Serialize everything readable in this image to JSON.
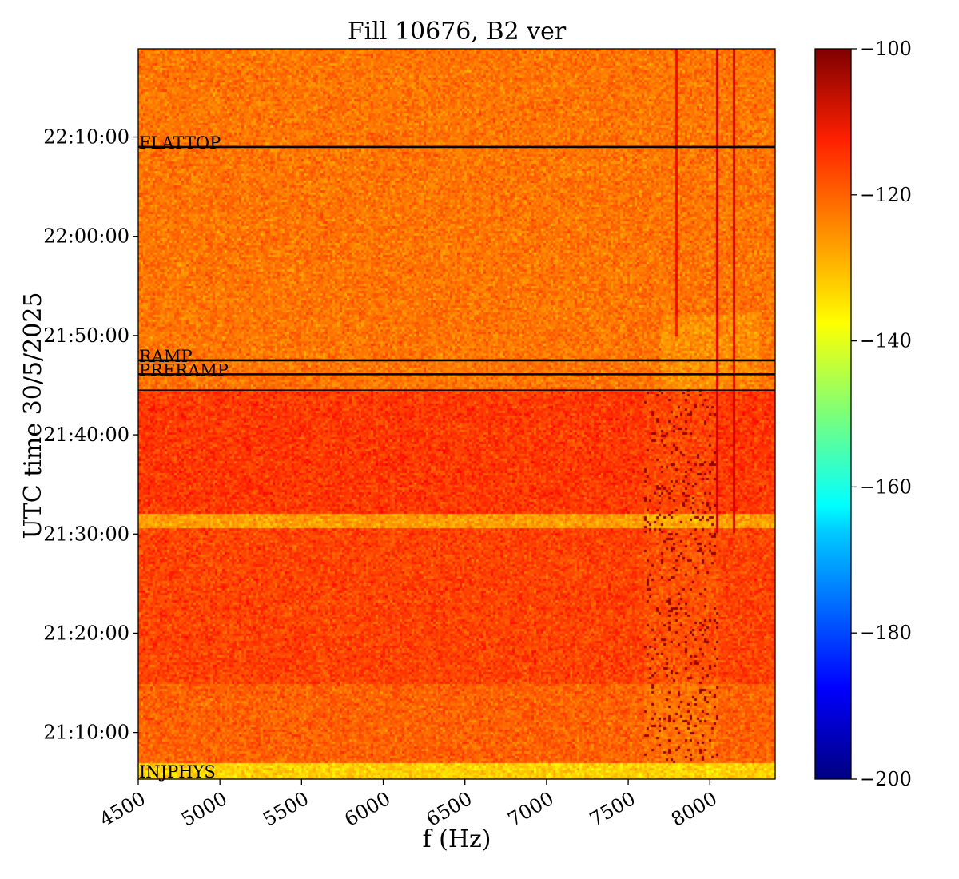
{
  "chart_data": {
    "type": "heatmap",
    "title": "Fill 10676, B2 ver",
    "xlabel": "f (Hz)",
    "ylabel": "UTC time 30/5/2025",
    "xlim": [
      4500,
      8400
    ],
    "xticks": [
      {
        "value": 4500,
        "label": "4500"
      },
      {
        "value": 5000,
        "label": "5000"
      },
      {
        "value": 5500,
        "label": "5500"
      },
      {
        "value": 6000,
        "label": "6000"
      },
      {
        "value": 6500,
        "label": "6500"
      },
      {
        "value": 7000,
        "label": "7000"
      },
      {
        "value": 7500,
        "label": "7500"
      },
      {
        "value": 8000,
        "label": "8000"
      }
    ],
    "ytick_minutes_after_2100": [
      {
        "value": 10,
        "label": "21:10:00"
      },
      {
        "value": 20,
        "label": "21:20:00"
      },
      {
        "value": 30,
        "label": "21:30:00"
      },
      {
        "value": 40,
        "label": "21:40:00"
      },
      {
        "value": 50,
        "label": "21:50:00"
      },
      {
        "value": 60,
        "label": "22:00:00"
      },
      {
        "value": 70,
        "label": "22:10:00"
      }
    ],
    "ylim_minutes_after_2100": [
      5.3,
      78.9
    ],
    "colorbar": {
      "colormap": "jet",
      "range": [
        -200,
        -100
      ],
      "ticks": [
        {
          "value": -100,
          "label": "−100"
        },
        {
          "value": -120,
          "label": "−120"
        },
        {
          "value": -140,
          "label": "−140"
        },
        {
          "value": -160,
          "label": "−160"
        },
        {
          "value": -180,
          "label": "−180"
        },
        {
          "value": -200,
          "label": "−200"
        }
      ]
    },
    "annotations": [
      {
        "label": "FLATTOP",
        "minute": 69.0
      },
      {
        "label": "RAMP",
        "minute": 47.5
      },
      {
        "label": "PRERAMP",
        "minute": 46.1
      },
      {
        "label": "",
        "minute": 44.5
      },
      {
        "label": "INJPHYS",
        "minute": 5.3
      }
    ],
    "bands": [
      {
        "from_minute": 5.3,
        "to_minute": 6.9,
        "level": -133
      },
      {
        "from_minute": 6.9,
        "to_minute": 15.0,
        "level": -122
      },
      {
        "from_minute": 15.0,
        "to_minute": 30.5,
        "level": -119
      },
      {
        "from_minute": 30.5,
        "to_minute": 32.0,
        "level": -128
      },
      {
        "from_minute": 32.0,
        "to_minute": 44.5,
        "level": -118
      },
      {
        "from_minute": 44.5,
        "to_minute": 78.9,
        "level": -124
      }
    ]
  }
}
